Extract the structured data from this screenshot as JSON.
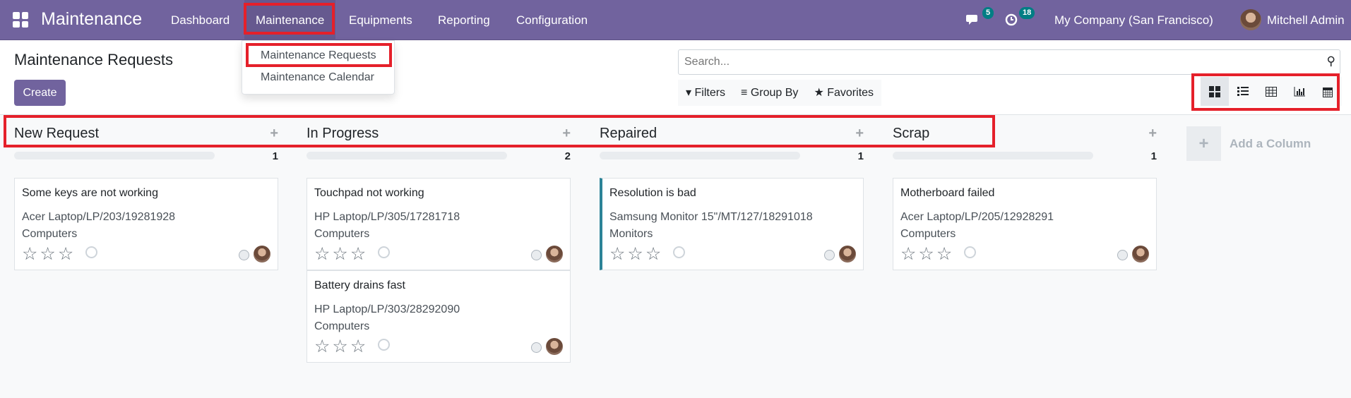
{
  "navbar": {
    "app_title": "Maintenance",
    "menus": [
      "Dashboard",
      "Maintenance",
      "Equipments",
      "Reporting",
      "Configuration"
    ],
    "active_menu": "Maintenance",
    "messages_count": "5",
    "activities_count": "18",
    "company": "My Company (San Francisco)",
    "user": "Mitchell Admin"
  },
  "dropdown": {
    "items": [
      "Maintenance Requests",
      "Maintenance Calendar"
    ]
  },
  "control_panel": {
    "title": "Maintenance Requests",
    "create_label": "Create",
    "search_placeholder": "Search...",
    "filters_label": "Filters",
    "group_by_label": "Group By",
    "favorites_label": "Favorites",
    "views": [
      "kanban",
      "list",
      "pivot",
      "graph",
      "calendar"
    ],
    "active_view": "kanban"
  },
  "columns": [
    {
      "title": "New Request",
      "count": "1",
      "cards": [
        {
          "name": "Some keys are not working",
          "equipment": "Acer Laptop/LP/203/19281928",
          "category": "Computers",
          "stars": 0
        }
      ]
    },
    {
      "title": "In Progress",
      "count": "2",
      "cards": [
        {
          "name": "Touchpad not working",
          "equipment": "HP Laptop/LP/305/17281718",
          "category": "Computers",
          "stars": 0
        },
        {
          "name": "Battery drains fast",
          "equipment": "HP Laptop/LP/303/28292090",
          "category": "Computers",
          "stars": 0
        }
      ]
    },
    {
      "title": "Repaired",
      "count": "1",
      "cards": [
        {
          "name": "Resolution is bad",
          "equipment": "Samsung Monitor 15\"/MT/127/18291018",
          "category": "Monitors",
          "stars": 0
        }
      ]
    },
    {
      "title": "Scrap",
      "count": "1",
      "cards": [
        {
          "name": "Motherboard failed",
          "equipment": "Acer Laptop/LP/205/12928291",
          "category": "Computers",
          "stars": 0
        }
      ]
    }
  ],
  "add_column_label": "Add a Column",
  "colors": {
    "navbar": "#71639e",
    "accent": "#017e84",
    "highlight": "#e5202a",
    "repaired_border": "#2c8397"
  }
}
